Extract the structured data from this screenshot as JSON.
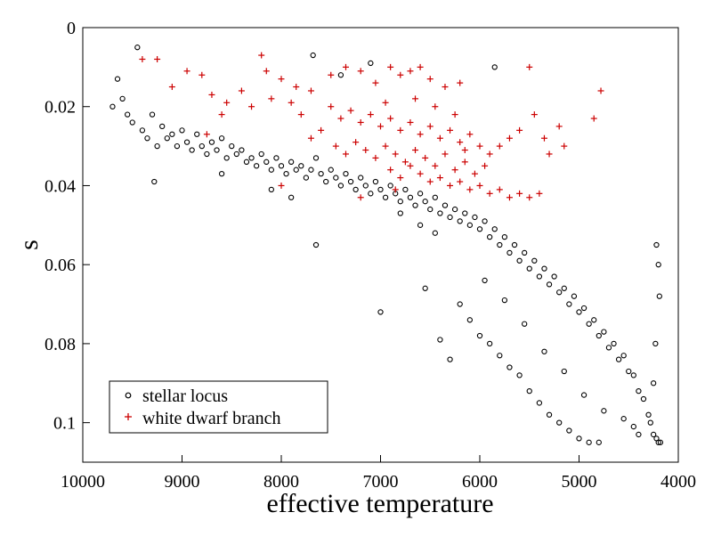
{
  "chart_data": {
    "type": "scatter",
    "title": "",
    "xlabel": "effective temperature",
    "ylabel": "s",
    "xlim": [
      10000,
      4000
    ],
    "ylim": [
      0,
      0.11
    ],
    "x_inverted": true,
    "y_inverted": true,
    "grid": false,
    "legend_position": "bottom-left",
    "xticks": [
      10000,
      9000,
      8000,
      7000,
      6000,
      5000,
      4000
    ],
    "yticks": [
      0,
      0.02,
      0.04,
      0.06,
      0.08,
      0.1
    ],
    "xtick_labels": [
      "10000",
      "9000",
      "8000",
      "7000",
      "6000",
      "5000",
      "4000"
    ],
    "ytick_labels": [
      "0",
      "0.02",
      "0.04",
      "0.06",
      "0.08",
      "0.1"
    ],
    "series": [
      {
        "name": "stellar locus",
        "marker": "circle",
        "color": "#000000",
        "points": [
          [
            9700,
            0.02
          ],
          [
            9650,
            0.013
          ],
          [
            9600,
            0.018
          ],
          [
            9550,
            0.022
          ],
          [
            9500,
            0.024
          ],
          [
            9450,
            0.005
          ],
          [
            9400,
            0.026
          ],
          [
            9350,
            0.028
          ],
          [
            9300,
            0.022
          ],
          [
            9280,
            0.039
          ],
          [
            9250,
            0.03
          ],
          [
            9200,
            0.025
          ],
          [
            9150,
            0.028
          ],
          [
            9100,
            0.027
          ],
          [
            9050,
            0.03
          ],
          [
            9000,
            0.026
          ],
          [
            8950,
            0.029
          ],
          [
            8900,
            0.031
          ],
          [
            8850,
            0.027
          ],
          [
            8800,
            0.03
          ],
          [
            8750,
            0.032
          ],
          [
            8700,
            0.029
          ],
          [
            8650,
            0.031
          ],
          [
            8600,
            0.028
          ],
          [
            8550,
            0.033
          ],
          [
            8500,
            0.03
          ],
          [
            8450,
            0.032
          ],
          [
            8400,
            0.031
          ],
          [
            8350,
            0.034
          ],
          [
            8300,
            0.033
          ],
          [
            8250,
            0.035
          ],
          [
            8200,
            0.032
          ],
          [
            8150,
            0.034
          ],
          [
            8100,
            0.036
          ],
          [
            8050,
            0.033
          ],
          [
            8000,
            0.035
          ],
          [
            7950,
            0.037
          ],
          [
            7900,
            0.034
          ],
          [
            7850,
            0.036
          ],
          [
            7800,
            0.035
          ],
          [
            7750,
            0.038
          ],
          [
            7700,
            0.036
          ],
          [
            7650,
            0.033
          ],
          [
            7600,
            0.037
          ],
          [
            7550,
            0.039
          ],
          [
            7500,
            0.036
          ],
          [
            7450,
            0.038
          ],
          [
            7400,
            0.04
          ],
          [
            7350,
            0.037
          ],
          [
            7300,
            0.039
          ],
          [
            7250,
            0.041
          ],
          [
            7200,
            0.038
          ],
          [
            7150,
            0.04
          ],
          [
            7100,
            0.042
          ],
          [
            7050,
            0.039
          ],
          [
            7000,
            0.041
          ],
          [
            6950,
            0.043
          ],
          [
            6900,
            0.04
          ],
          [
            6850,
            0.042
          ],
          [
            6800,
            0.044
          ],
          [
            6750,
            0.041
          ],
          [
            6700,
            0.043
          ],
          [
            6650,
            0.045
          ],
          [
            6600,
            0.042
          ],
          [
            6550,
            0.044
          ],
          [
            6500,
            0.046
          ],
          [
            6450,
            0.043
          ],
          [
            6400,
            0.047
          ],
          [
            6350,
            0.045
          ],
          [
            6300,
            0.048
          ],
          [
            6250,
            0.046
          ],
          [
            6200,
            0.049
          ],
          [
            6150,
            0.047
          ],
          [
            6100,
            0.05
          ],
          [
            6050,
            0.048
          ],
          [
            6000,
            0.051
          ],
          [
            5950,
            0.049
          ],
          [
            5900,
            0.053
          ],
          [
            5850,
            0.051
          ],
          [
            5800,
            0.055
          ],
          [
            5750,
            0.053
          ],
          [
            5700,
            0.057
          ],
          [
            5650,
            0.055
          ],
          [
            5600,
            0.059
          ],
          [
            5550,
            0.057
          ],
          [
            5500,
            0.061
          ],
          [
            5450,
            0.059
          ],
          [
            5400,
            0.063
          ],
          [
            5350,
            0.061
          ],
          [
            5300,
            0.065
          ],
          [
            5250,
            0.063
          ],
          [
            5200,
            0.067
          ],
          [
            5150,
            0.066
          ],
          [
            5100,
            0.07
          ],
          [
            5050,
            0.068
          ],
          [
            5000,
            0.072
          ],
          [
            4950,
            0.071
          ],
          [
            4900,
            0.075
          ],
          [
            4850,
            0.074
          ],
          [
            4800,
            0.078
          ],
          [
            4750,
            0.077
          ],
          [
            4700,
            0.081
          ],
          [
            4650,
            0.08
          ],
          [
            4600,
            0.084
          ],
          [
            4550,
            0.083
          ],
          [
            4500,
            0.087
          ],
          [
            4450,
            0.088
          ],
          [
            4400,
            0.092
          ],
          [
            4350,
            0.094
          ],
          [
            4300,
            0.098
          ],
          [
            4280,
            0.1
          ],
          [
            4250,
            0.103
          ],
          [
            4220,
            0.104
          ],
          [
            4200,
            0.105
          ],
          [
            4180,
            0.105
          ],
          [
            4220,
            0.055
          ],
          [
            4200,
            0.06
          ],
          [
            4190,
            0.068
          ],
          [
            4230,
            0.08
          ],
          [
            4250,
            0.09
          ],
          [
            6200,
            0.07
          ],
          [
            6100,
            0.074
          ],
          [
            6000,
            0.078
          ],
          [
            5900,
            0.08
          ],
          [
            5800,
            0.083
          ],
          [
            5700,
            0.086
          ],
          [
            5600,
            0.088
          ],
          [
            5500,
            0.092
          ],
          [
            5400,
            0.095
          ],
          [
            5300,
            0.098
          ],
          [
            5200,
            0.1
          ],
          [
            5100,
            0.102
          ],
          [
            5000,
            0.104
          ],
          [
            4900,
            0.105
          ],
          [
            4800,
            0.105
          ],
          [
            6300,
            0.084
          ],
          [
            6400,
            0.079
          ],
          [
            7000,
            0.072
          ],
          [
            6550,
            0.066
          ],
          [
            7650,
            0.055
          ],
          [
            7900,
            0.043
          ],
          [
            8100,
            0.041
          ],
          [
            8600,
            0.037
          ],
          [
            5850,
            0.01
          ],
          [
            7680,
            0.007
          ],
          [
            7100,
            0.009
          ],
          [
            7400,
            0.012
          ],
          [
            6800,
            0.047
          ],
          [
            6600,
            0.05
          ],
          [
            6450,
            0.052
          ],
          [
            5950,
            0.064
          ],
          [
            5750,
            0.069
          ],
          [
            5550,
            0.075
          ],
          [
            5350,
            0.082
          ],
          [
            5150,
            0.087
          ],
          [
            4950,
            0.093
          ],
          [
            4750,
            0.097
          ],
          [
            4550,
            0.099
          ],
          [
            4450,
            0.101
          ],
          [
            4400,
            0.103
          ]
        ]
      },
      {
        "name": "white dwarf branch",
        "marker": "plus",
        "color": "#cc0000",
        "points": [
          [
            9400,
            0.008
          ],
          [
            9250,
            0.008
          ],
          [
            9100,
            0.015
          ],
          [
            8950,
            0.011
          ],
          [
            8800,
            0.012
          ],
          [
            8700,
            0.017
          ],
          [
            8550,
            0.019
          ],
          [
            8400,
            0.016
          ],
          [
            8200,
            0.007
          ],
          [
            8150,
            0.011
          ],
          [
            8000,
            0.013
          ],
          [
            7850,
            0.015
          ],
          [
            7700,
            0.016
          ],
          [
            7500,
            0.012
          ],
          [
            7350,
            0.01
          ],
          [
            7200,
            0.011
          ],
          [
            7050,
            0.014
          ],
          [
            6900,
            0.01
          ],
          [
            6800,
            0.012
          ],
          [
            6700,
            0.011
          ],
          [
            6600,
            0.01
          ],
          [
            6500,
            0.013
          ],
          [
            6350,
            0.015
          ],
          [
            6200,
            0.014
          ],
          [
            5500,
            0.01
          ],
          [
            4780,
            0.016
          ],
          [
            4850,
            0.023
          ],
          [
            5200,
            0.025
          ],
          [
            5350,
            0.028
          ],
          [
            5450,
            0.022
          ],
          [
            7500,
            0.02
          ],
          [
            7400,
            0.023
          ],
          [
            7300,
            0.021
          ],
          [
            7200,
            0.024
          ],
          [
            7100,
            0.022
          ],
          [
            7000,
            0.025
          ],
          [
            6900,
            0.023
          ],
          [
            6800,
            0.026
          ],
          [
            6700,
            0.024
          ],
          [
            6600,
            0.027
          ],
          [
            6500,
            0.025
          ],
          [
            6400,
            0.028
          ],
          [
            6300,
            0.026
          ],
          [
            6200,
            0.029
          ],
          [
            6100,
            0.027
          ],
          [
            6000,
            0.03
          ],
          [
            7450,
            0.03
          ],
          [
            7350,
            0.032
          ],
          [
            7250,
            0.029
          ],
          [
            7150,
            0.031
          ],
          [
            7050,
            0.033
          ],
          [
            6950,
            0.03
          ],
          [
            6850,
            0.032
          ],
          [
            6750,
            0.034
          ],
          [
            6650,
            0.031
          ],
          [
            6550,
            0.033
          ],
          [
            6450,
            0.035
          ],
          [
            6350,
            0.032
          ],
          [
            6250,
            0.036
          ],
          [
            6150,
            0.034
          ],
          [
            6050,
            0.037
          ],
          [
            5950,
            0.035
          ],
          [
            6900,
            0.036
          ],
          [
            6800,
            0.038
          ],
          [
            6700,
            0.035
          ],
          [
            6600,
            0.037
          ],
          [
            6500,
            0.039
          ],
          [
            6400,
            0.038
          ],
          [
            6300,
            0.04
          ],
          [
            6200,
            0.039
          ],
          [
            6100,
            0.041
          ],
          [
            6000,
            0.04
          ],
          [
            5900,
            0.042
          ],
          [
            5800,
            0.041
          ],
          [
            5700,
            0.043
          ],
          [
            5600,
            0.042
          ],
          [
            5500,
            0.043
          ],
          [
            5400,
            0.042
          ],
          [
            7800,
            0.022
          ],
          [
            7900,
            0.019
          ],
          [
            8100,
            0.018
          ],
          [
            8300,
            0.02
          ],
          [
            8600,
            0.022
          ],
          [
            8750,
            0.027
          ],
          [
            7600,
            0.026
          ],
          [
            7700,
            0.028
          ],
          [
            8000,
            0.04
          ],
          [
            7200,
            0.043
          ],
          [
            6850,
            0.041
          ],
          [
            5150,
            0.03
          ],
          [
            5300,
            0.032
          ],
          [
            5600,
            0.026
          ],
          [
            5700,
            0.028
          ],
          [
            5800,
            0.03
          ],
          [
            5900,
            0.032
          ],
          [
            6150,
            0.031
          ],
          [
            6250,
            0.022
          ],
          [
            6450,
            0.02
          ],
          [
            6650,
            0.018
          ],
          [
            6950,
            0.019
          ]
        ]
      }
    ]
  }
}
